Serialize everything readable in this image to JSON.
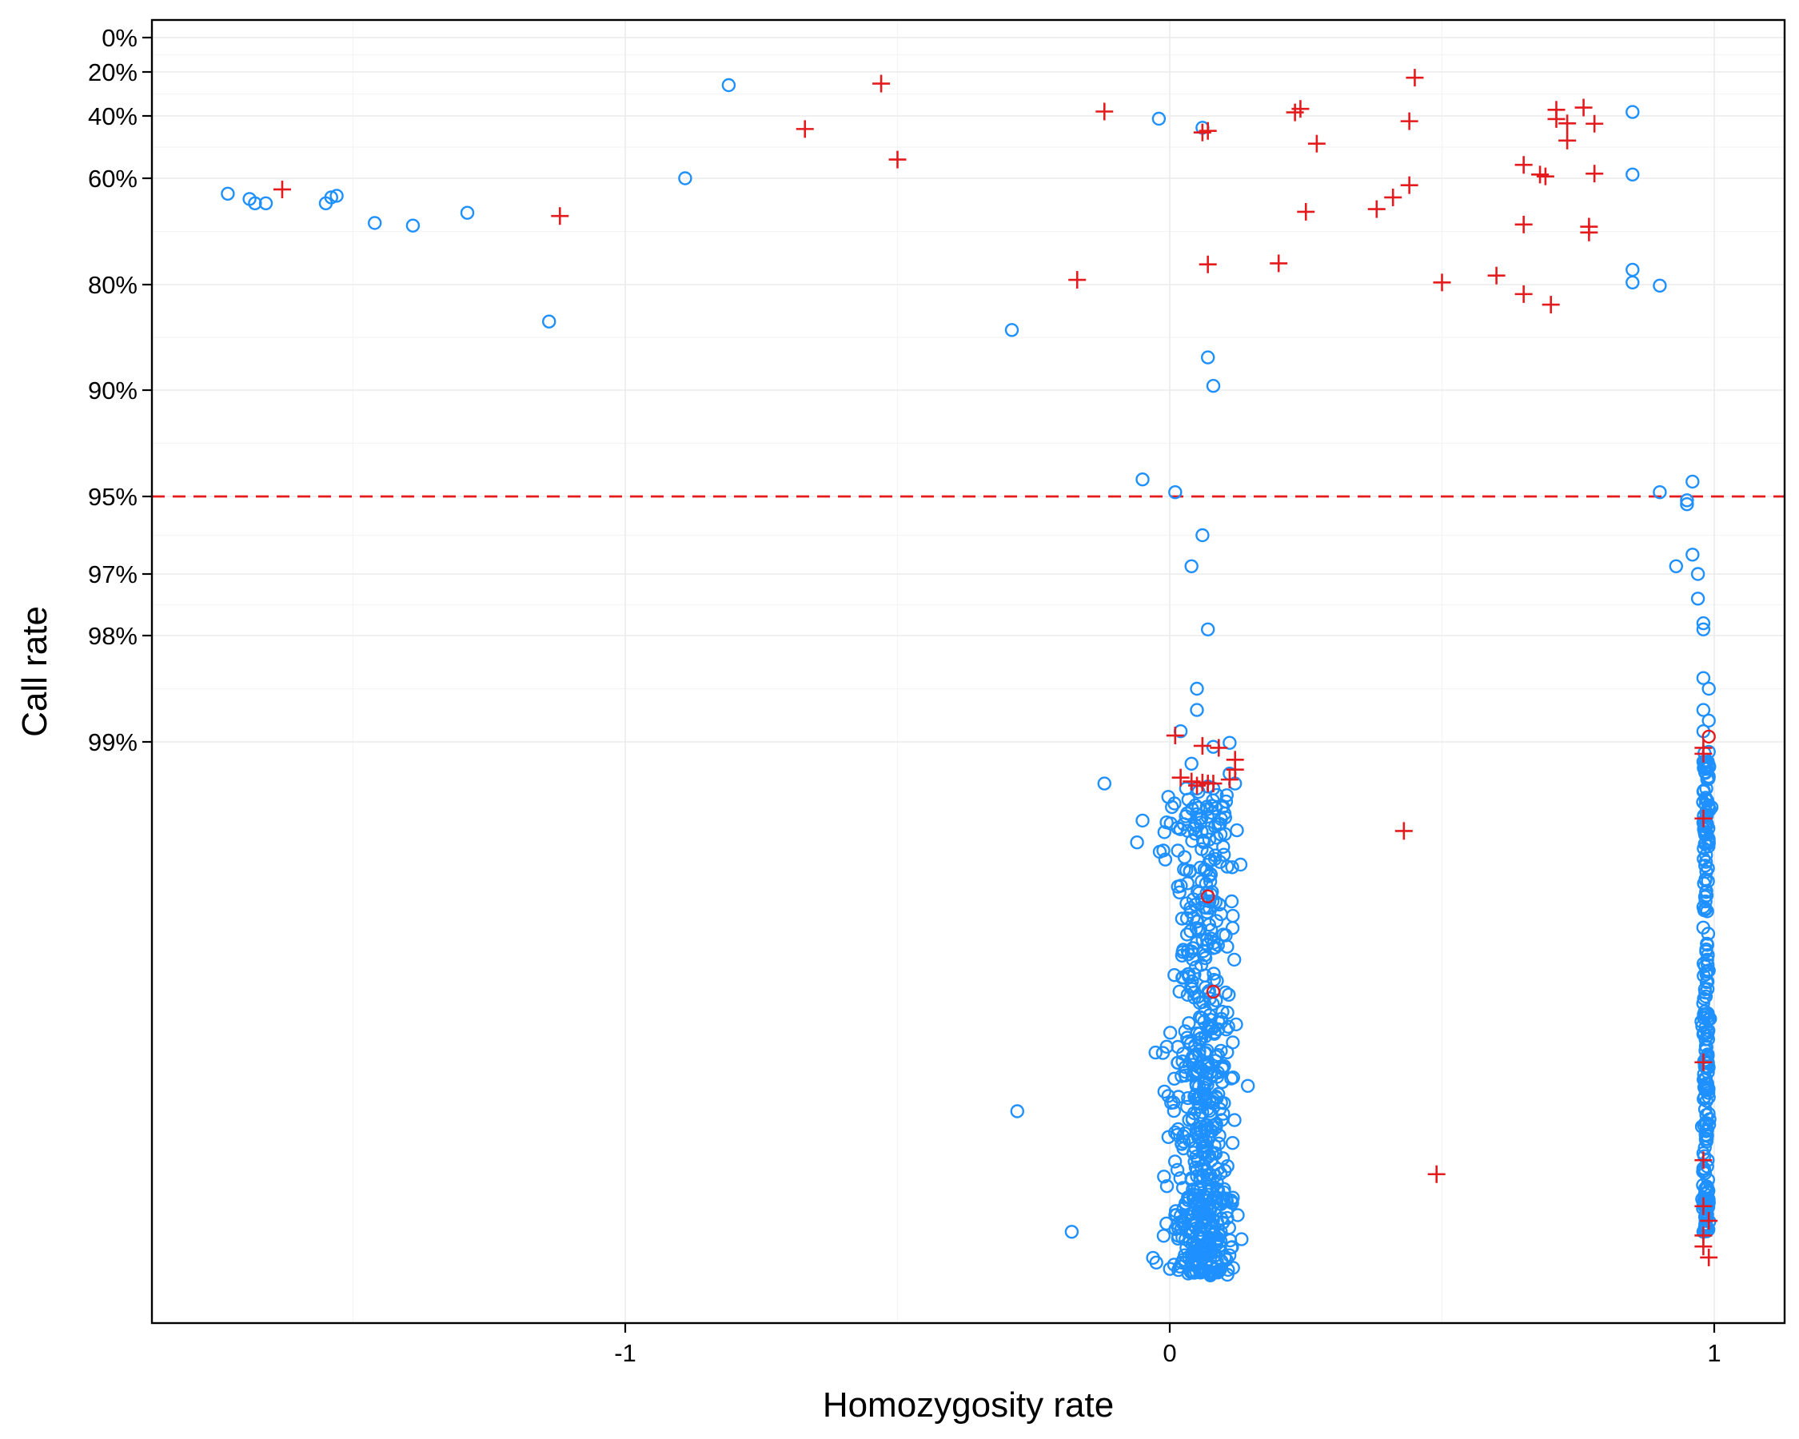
{
  "chart_data": {
    "type": "scatter",
    "xlabel": "Homozygosity rate",
    "ylabel": "Call rate",
    "xlim": [
      -1.87,
      1.13
    ],
    "x_ticks": [
      {
        "value": -1,
        "label": "-1"
      },
      {
        "value": 0,
        "label": "0"
      },
      {
        "value": 1,
        "label": "1"
      }
    ],
    "x_minor_ticks": [
      -1.5,
      -0.5,
      0.5
    ],
    "y_scale": "transformed (non-linear), call rate increasing downward",
    "y_ticks": [
      {
        "value": 0,
        "label": "0%"
      },
      {
        "value": 20,
        "label": "20%"
      },
      {
        "value": 40,
        "label": "40%"
      },
      {
        "value": 60,
        "label": "60%"
      },
      {
        "value": 80,
        "label": "80%"
      },
      {
        "value": 90,
        "label": "90%"
      },
      {
        "value": 95,
        "label": "95%"
      },
      {
        "value": 97,
        "label": "97%"
      },
      {
        "value": 98,
        "label": "98%"
      },
      {
        "value": 99,
        "label": "99%"
      }
    ],
    "y_minor_ticks": [
      10,
      30,
      50,
      70,
      85,
      92.5,
      96,
      97.5,
      98.5
    ],
    "reference_line": {
      "orientation": "horizontal",
      "y": 95,
      "style": "dashed",
      "color": "#e41a1c"
    },
    "grid": true,
    "colors": {
      "circle": "#1e90ff",
      "cross": "#e41a1c",
      "flagged_circle": "#e41a1c"
    },
    "series": [
      {
        "marker": "circle",
        "points": [
          [
            -1.73,
            62.9
          ],
          [
            -1.69,
            63.9
          ],
          [
            -1.68,
            64.7
          ],
          [
            -1.66,
            64.7
          ],
          [
            -1.55,
            64.7
          ],
          [
            -1.54,
            63.6
          ],
          [
            -1.53,
            63.3
          ],
          [
            -1.46,
            68.4
          ],
          [
            -1.39,
            68.9
          ],
          [
            -1.29,
            66.5
          ],
          [
            -1.14,
            83.5
          ],
          [
            -0.89,
            60.0
          ],
          [
            -0.81,
            26.0
          ],
          [
            -0.29,
            84.3
          ],
          [
            -0.02,
            40.9
          ],
          [
            0.06,
            43.8
          ],
          [
            0.85,
            38.2
          ],
          [
            0.85,
            58.8
          ],
          [
            0.85,
            77.2
          ],
          [
            0.85,
            79.6
          ],
          [
            0.9,
            80.1
          ],
          [
            0.07,
            86.9
          ],
          [
            0.08,
            89.6
          ],
          [
            -0.05,
            94.2
          ],
          [
            0.01,
            94.8
          ],
          [
            0.06,
            96.0
          ],
          [
            0.04,
            96.8
          ],
          [
            0.07,
            97.9
          ],
          [
            0.05,
            98.5
          ],
          [
            0.05,
            98.7
          ],
          [
            0.02,
            98.9
          ],
          [
            0.08,
            99.05
          ],
          [
            0.11,
            99.01
          ],
          [
            0.04,
            99.22
          ],
          [
            0.11,
            99.32
          ],
          [
            -0.12,
            99.42
          ],
          [
            0.03,
            99.47
          ],
          [
            0.05,
            99.47
          ],
          [
            0.07,
            99.45
          ],
          [
            0.08,
            99.47
          ],
          [
            0.12,
            99.42
          ],
          [
            -0.05,
            99.78
          ],
          [
            -0.06,
            99.99
          ],
          [
            -0.28,
            101.4
          ],
          [
            -0.18,
            102.5
          ],
          [
            0.13,
            100.1
          ],
          [
            0.96,
            94.3
          ],
          [
            0.9,
            94.8
          ],
          [
            0.95,
            95.1
          ],
          [
            0.95,
            95.2
          ],
          [
            0.96,
            96.5
          ],
          [
            0.93,
            96.8
          ],
          [
            0.97,
            97.0
          ],
          [
            0.97,
            97.4
          ],
          [
            0.98,
            97.8
          ],
          [
            0.98,
            97.9
          ],
          [
            0.98,
            98.4
          ],
          [
            0.99,
            98.5
          ],
          [
            0.98,
            98.7
          ],
          [
            0.99,
            98.8
          ],
          [
            0.98,
            98.9
          ],
          [
            0.99,
            99.1
          ],
          [
            0.98,
            99.2
          ],
          [
            0.99,
            99.35
          ],
          [
            0.98,
            99.5
          ],
          [
            0.99,
            99.65
          ],
          [
            0.98,
            99.8
          ],
          [
            0.99,
            100.0
          ],
          [
            0.98,
            100.3
          ],
          [
            0.99,
            100.6
          ],
          [
            0.98,
            100.9
          ],
          [
            0.99,
            101.3
          ],
          [
            0.98,
            101.7
          ],
          [
            0.99,
            102.1
          ],
          [
            0.98,
            102.5
          ]
        ],
        "clusters": [
          {
            "x_center": 0.06,
            "x_spread": 0.055,
            "y_range": [
              99.5,
              103.1
            ],
            "count": 620
          },
          {
            "x_center": 0.985,
            "x_spread": 0.006,
            "y_range": [
              99.1,
              102.5
            ],
            "count": 220
          }
        ]
      },
      {
        "marker": "cross",
        "points": [
          [
            -1.63,
            62.1
          ],
          [
            -1.12,
            67.1
          ],
          [
            -0.67,
            44.2
          ],
          [
            -0.53,
            25.3
          ],
          [
            -0.5,
            54.0
          ],
          [
            -0.17,
            79.1
          ],
          [
            -0.12,
            38.0
          ],
          [
            0.06,
            45.3
          ],
          [
            0.07,
            44.8
          ],
          [
            0.07,
            76.2
          ],
          [
            0.2,
            76.0
          ],
          [
            0.23,
            38.4
          ],
          [
            0.24,
            36.8
          ],
          [
            0.25,
            66.3
          ],
          [
            0.27,
            48.9
          ],
          [
            0.38,
            65.8
          ],
          [
            0.41,
            63.6
          ],
          [
            0.44,
            61.3
          ],
          [
            0.44,
            41.7
          ],
          [
            0.45,
            22.6
          ],
          [
            0.5,
            79.6
          ],
          [
            0.6,
            78.3
          ],
          [
            0.65,
            80.9
          ],
          [
            0.65,
            55.7
          ],
          [
            0.65,
            68.7
          ],
          [
            0.68,
            58.8
          ],
          [
            0.69,
            59.4
          ],
          [
            0.7,
            81.9
          ],
          [
            0.71,
            37.2
          ],
          [
            0.71,
            41.0
          ],
          [
            0.73,
            42.4
          ],
          [
            0.73,
            47.9
          ],
          [
            0.76,
            36.2
          ],
          [
            0.77,
            69.1
          ],
          [
            0.77,
            70.2
          ],
          [
            0.78,
            42.5
          ],
          [
            0.78,
            58.5
          ],
          [
            0.01,
            98.94
          ],
          [
            0.06,
            99.04
          ],
          [
            0.09,
            99.06
          ],
          [
            0.12,
            99.18
          ],
          [
            0.12,
            99.28
          ],
          [
            0.02,
            99.36
          ],
          [
            0.04,
            99.4
          ],
          [
            0.05,
            99.44
          ],
          [
            0.06,
            99.41
          ],
          [
            0.07,
            99.42
          ],
          [
            0.08,
            99.42
          ],
          [
            0.11,
            99.38
          ],
          [
            0.43,
            99.88
          ],
          [
            0.49,
            101.85
          ],
          [
            0.98,
            99.06
          ],
          [
            0.98,
            99.12
          ],
          [
            0.98,
            99.76
          ],
          [
            0.98,
            101.05
          ],
          [
            0.98,
            101.75
          ],
          [
            0.98,
            102.15
          ],
          [
            0.99,
            102.35
          ],
          [
            0.98,
            102.55
          ],
          [
            0.98,
            102.7
          ],
          [
            0.99,
            102.85
          ]
        ]
      },
      {
        "marker": "circle-flagged",
        "points": [
          [
            0.07,
            100.25
          ],
          [
            0.08,
            100.7
          ],
          [
            0.99,
            98.95
          ]
        ]
      }
    ]
  }
}
